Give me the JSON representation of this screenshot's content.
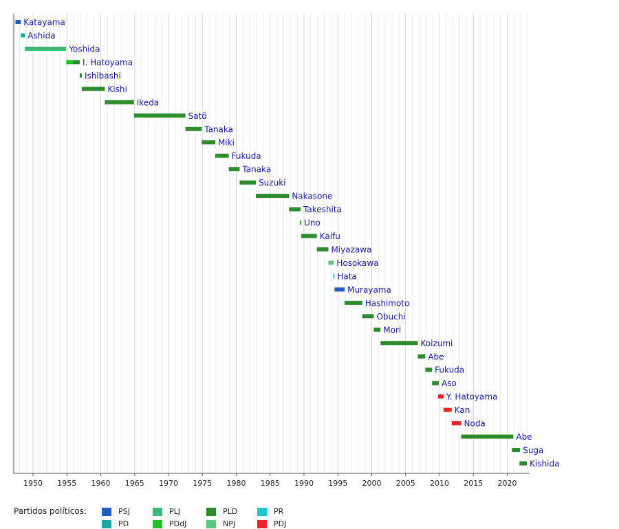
{
  "chart_data": {
    "type": "bar",
    "orientation": "horizontal-timeline",
    "title": "",
    "xlabel": "",
    "ylabel": "",
    "xlim": [
      1946.8,
      2023.3
    ],
    "x_ticks": [
      1950,
      1955,
      1960,
      1965,
      1970,
      1975,
      1980,
      1985,
      1990,
      1995,
      2000,
      2005,
      2010,
      2015,
      2020
    ],
    "grid": "vertical yearly lines",
    "colors": {
      "PSJ": "#1f5fbf",
      "PD": "#20a8a8",
      "PLJ": "#3cb878",
      "PDdJ": "#22c022",
      "PLD": "#2e8b2e",
      "NPJ": "#5ac87a",
      "PR": "#1ec8c8",
      "PDJ": "#ee2222"
    },
    "terms": [
      {
        "name": "Katayama",
        "start": 1947.4,
        "end": 1948.2,
        "party": "PSJ"
      },
      {
        "name": "Ashida",
        "start": 1948.2,
        "end": 1948.8,
        "party": "PD"
      },
      {
        "name": "Yoshida",
        "start": 1948.8,
        "end": 1954.9,
        "party": "PLJ"
      },
      {
        "name": "I. Hatoyama",
        "start": 1954.9,
        "end": 1956.9,
        "party": "PDdJ",
        "segments": [
          {
            "start": 1954.9,
            "end": 1955.9,
            "party": "PDdJ"
          },
          {
            "start": 1955.9,
            "end": 1956.9,
            "party": "PLD"
          }
        ]
      },
      {
        "name": "Ishibashi",
        "start": 1956.9,
        "end": 1957.2,
        "party": "PLD"
      },
      {
        "name": "Kishi",
        "start": 1957.2,
        "end": 1960.6,
        "party": "PLD"
      },
      {
        "name": "Ikeda",
        "start": 1960.6,
        "end": 1964.9,
        "party": "PLD"
      },
      {
        "name": "Satō",
        "start": 1964.9,
        "end": 1972.5,
        "party": "PLD"
      },
      {
        "name": "Tanaka",
        "start": 1972.5,
        "end": 1974.9,
        "party": "PLD"
      },
      {
        "name": "Miki",
        "start": 1974.9,
        "end": 1976.9,
        "party": "PLD"
      },
      {
        "name": "Fukuda",
        "start": 1976.9,
        "end": 1978.9,
        "party": "PLD"
      },
      {
        "name": "Tanaka",
        "start": 1978.9,
        "end": 1980.5,
        "party": "PLD"
      },
      {
        "name": "Suzuki",
        "start": 1980.5,
        "end": 1982.9,
        "party": "PLD"
      },
      {
        "name": "Nakasone",
        "start": 1982.9,
        "end": 1987.8,
        "party": "PLD"
      },
      {
        "name": "Takeshita",
        "start": 1987.8,
        "end": 1989.5,
        "party": "PLD"
      },
      {
        "name": "Uno",
        "start": 1989.4,
        "end": 1989.6,
        "party": "PLD"
      },
      {
        "name": "Kaifu",
        "start": 1989.6,
        "end": 1991.9,
        "party": "PLD"
      },
      {
        "name": "Miyazawa",
        "start": 1991.9,
        "end": 1993.6,
        "party": "PLD"
      },
      {
        "name": "Hosokawa",
        "start": 1993.6,
        "end": 1994.4,
        "party": "NPJ"
      },
      {
        "name": "Hata",
        "start": 1994.3,
        "end": 1994.5,
        "party": "PR"
      },
      {
        "name": "Murayama",
        "start": 1994.5,
        "end": 1996.0,
        "party": "PSJ"
      },
      {
        "name": "Hashimoto",
        "start": 1996.0,
        "end": 1998.6,
        "party": "PLD"
      },
      {
        "name": "Obuchi",
        "start": 1998.6,
        "end": 2000.3,
        "party": "PLD"
      },
      {
        "name": "Mori",
        "start": 2000.3,
        "end": 2001.3,
        "party": "PLD"
      },
      {
        "name": "Koizumi",
        "start": 2001.3,
        "end": 2006.8,
        "party": "PLD"
      },
      {
        "name": "Abe",
        "start": 2006.8,
        "end": 2007.9,
        "party": "PLD"
      },
      {
        "name": "Fukuda",
        "start": 2007.9,
        "end": 2008.9,
        "party": "PLD"
      },
      {
        "name": "Aso",
        "start": 2008.9,
        "end": 2009.9,
        "party": "PLD"
      },
      {
        "name": "Y. Hatoyama",
        "start": 2009.8,
        "end": 2010.6,
        "party": "PDJ"
      },
      {
        "name": "Kan",
        "start": 2010.6,
        "end": 2011.8,
        "party": "PDJ"
      },
      {
        "name": "Noda",
        "start": 2011.8,
        "end": 2013.2,
        "party": "PDJ"
      },
      {
        "name": "Abe",
        "start": 2013.2,
        "end": 2020.9,
        "party": "PLD"
      },
      {
        "name": "Suga",
        "start": 2020.7,
        "end": 2021.9,
        "party": "PLD"
      },
      {
        "name": "Kishida",
        "start": 2021.8,
        "end": 2022.9,
        "party": "PLD"
      }
    ]
  },
  "legend": {
    "title": "Partidos políticos:",
    "items": [
      {
        "key": "PSJ",
        "label": "PSJ"
      },
      {
        "key": "PD",
        "label": "PD"
      },
      {
        "key": "PLJ",
        "label": "PLJ"
      },
      {
        "key": "PDdJ",
        "label": "PDdJ"
      },
      {
        "key": "PLD",
        "label": "PLD"
      },
      {
        "key": "NPJ",
        "label": "NPJ"
      },
      {
        "key": "PR",
        "label": "PR"
      },
      {
        "key": "PDJ",
        "label": "PDJ"
      }
    ]
  }
}
